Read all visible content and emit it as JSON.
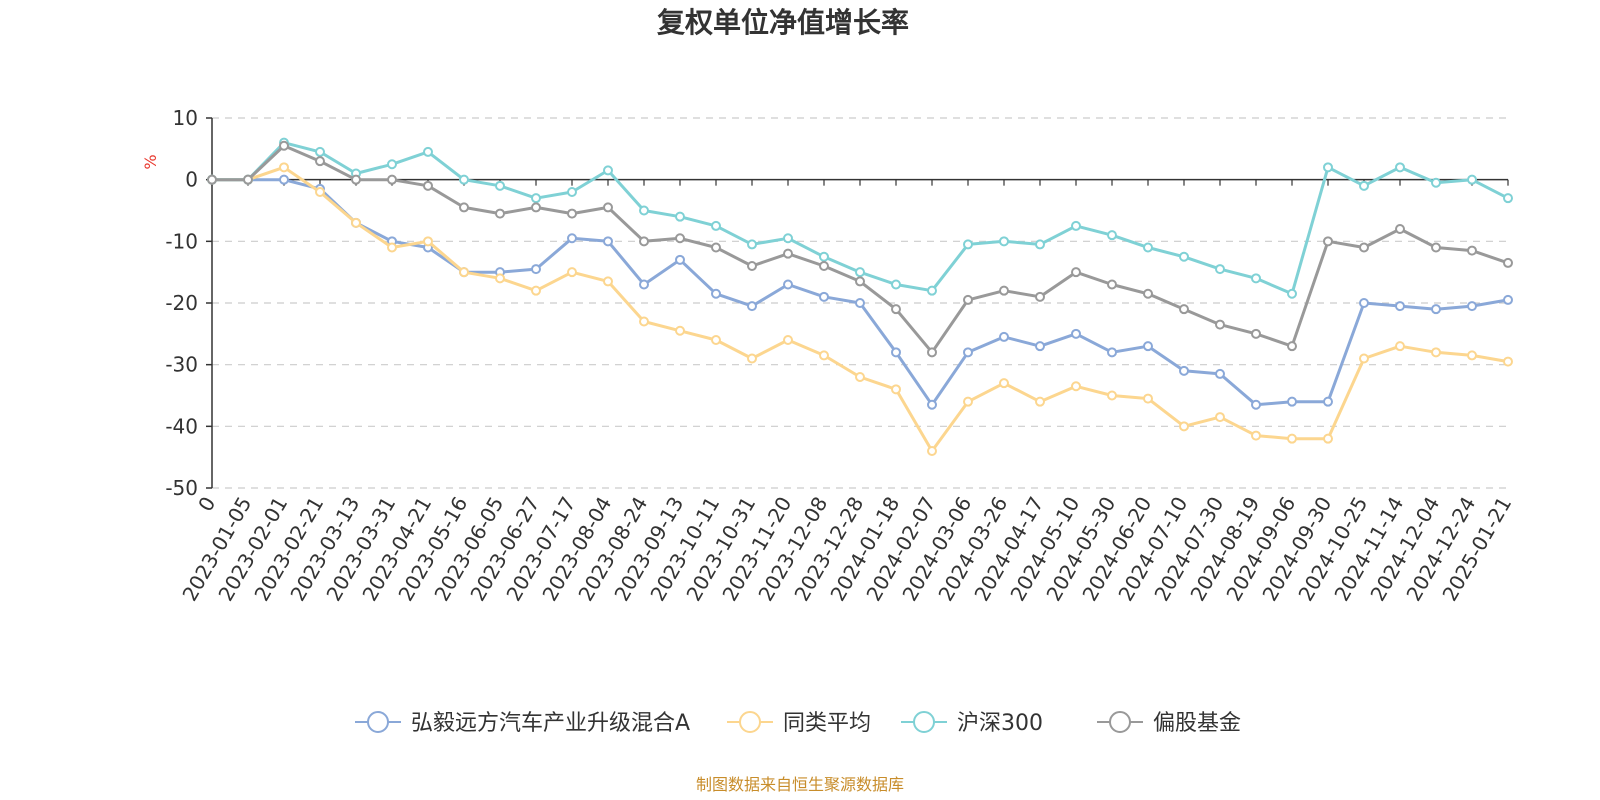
{
  "chart_data": {
    "type": "line",
    "title": "复权单位净值增长率",
    "ylabel": "%",
    "xlabel": "",
    "ylim": [
      -50,
      10
    ],
    "y_ticks": [
      10,
      0,
      -10,
      -20,
      -30,
      -40,
      -50
    ],
    "grid": true,
    "legend_position": "bottom",
    "source_note": "制图数据来自恒生聚源数据库",
    "x": [
      "0",
      "2023-01-05",
      "2023-02-01",
      "2023-02-21",
      "2023-03-13",
      "2023-03-31",
      "2023-04-21",
      "2023-05-16",
      "2023-06-05",
      "2023-06-27",
      "2023-07-17",
      "2023-08-04",
      "2023-08-24",
      "2023-09-13",
      "2023-10-11",
      "2023-10-31",
      "2023-11-20",
      "2023-12-08",
      "2023-12-28",
      "2024-01-18",
      "2024-02-07",
      "2024-03-06",
      "2024-03-26",
      "2024-04-17",
      "2024-05-10",
      "2024-05-30",
      "2024-06-20",
      "2024-07-10",
      "2024-07-30",
      "2024-08-19",
      "2024-09-06",
      "2024-09-30",
      "2024-10-25",
      "2024-11-14",
      "2024-12-04",
      "2024-12-24",
      "2025-01-21"
    ],
    "series": [
      {
        "name": "弘毅远方汽车产业升级混合A",
        "color": "#8aa8d8",
        "values": [
          0,
          0,
          0,
          -1.5,
          -7,
          -10,
          -11,
          -15,
          -15,
          -14.5,
          -9.5,
          -10,
          -17,
          -13,
          -18.5,
          -20.5,
          -17,
          -19,
          -20,
          -28,
          -36.5,
          -28,
          -25.5,
          -27,
          -25,
          -28,
          -27,
          -31,
          -31.5,
          -36.5,
          -36,
          -36,
          -20,
          -20.5,
          -21,
          -20.5,
          -19.5
        ]
      },
      {
        "name": "同类平均",
        "color": "#fcd68f",
        "values": [
          0,
          0,
          2,
          -2,
          -7,
          -11,
          -10,
          -15,
          -16,
          -18,
          -15,
          -16.5,
          -23,
          -24.5,
          -26,
          -29,
          -26,
          -28.5,
          -32,
          -34,
          -44,
          -36,
          -33,
          -36,
          -33.5,
          -35,
          -35.5,
          -40,
          -38.5,
          -41.5,
          -42,
          -42,
          -29,
          -27,
          -28,
          -28.5,
          -29.5
        ]
      },
      {
        "name": "沪深300",
        "color": "#7fd1d5",
        "values": [
          0,
          0,
          6,
          4.5,
          1,
          2.5,
          4.5,
          0,
          -1,
          -3,
          -2,
          1.5,
          -5,
          -6,
          -7.5,
          -10.5,
          -9.5,
          -12.5,
          -15,
          -17,
          -18,
          -10.5,
          -10,
          -10.5,
          -7.5,
          -9,
          -11,
          -12.5,
          -14.5,
          -16,
          -18.5,
          2,
          -1,
          2,
          -0.5,
          0,
          -3
        ]
      },
      {
        "name": "偏股基金",
        "color": "#999999",
        "values": [
          0,
          0,
          5.5,
          3,
          0,
          0,
          -1,
          -4.5,
          -5.5,
          -4.5,
          -5.5,
          -4.5,
          -10,
          -9.5,
          -11,
          -14,
          -12,
          -14,
          -16.5,
          -21,
          -28,
          -19.5,
          -18,
          -19,
          -15,
          -17,
          -18.5,
          -21,
          -23.5,
          -25,
          -27,
          -10,
          -11,
          -8,
          -11,
          -11.5,
          -13.5
        ]
      }
    ]
  }
}
